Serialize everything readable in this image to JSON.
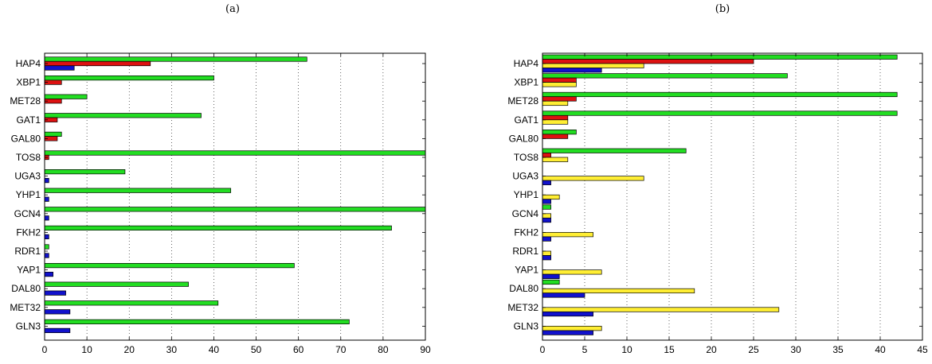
{
  "chart_data": [
    {
      "panel_label": "(a)",
      "type": "bar",
      "orientation": "horizontal",
      "categories": [
        "HAP4",
        "XBP1",
        "MET28",
        "GAT1",
        "GAL80",
        "TOS8",
        "UGA3",
        "YHP1",
        "GCN4",
        "FKH2",
        "RDR1",
        "YAP1",
        "DAL80",
        "MET32",
        "GLN3"
      ],
      "series": [
        {
          "color": "#22dd22",
          "values": [
            62,
            40,
            10,
            37,
            4,
            90,
            19,
            44,
            90,
            82,
            1,
            59,
            34,
            41,
            72
          ]
        },
        {
          "color": "#dd1111",
          "values": [
            25,
            4,
            4,
            3,
            3,
            1,
            0,
            0,
            0,
            0,
            0,
            0,
            0,
            0,
            0
          ]
        },
        {
          "color": "#1111cc",
          "values": [
            7,
            0,
            0,
            0,
            0,
            0,
            1,
            1,
            1,
            1,
            1,
            2,
            5,
            6,
            6
          ]
        }
      ],
      "xlim": [
        0,
        90
      ],
      "xticks": [
        0,
        10,
        20,
        30,
        40,
        50,
        60,
        70,
        80,
        90
      ],
      "grid": "x-dotted"
    },
    {
      "panel_label": "(b)",
      "type": "bar",
      "orientation": "horizontal",
      "categories": [
        "HAP4",
        "XBP1",
        "MET28",
        "GAT1",
        "GAL80",
        "TOS8",
        "UGA3",
        "YHP1",
        "GCN4",
        "FKH2",
        "RDR1",
        "YAP1",
        "DAL80",
        "MET32",
        "GLN3"
      ],
      "series": [
        {
          "color": "#22dd22",
          "values": [
            42,
            29,
            42,
            42,
            4,
            17,
            0,
            0,
            1,
            0,
            0,
            0,
            2,
            0,
            0
          ]
        },
        {
          "color": "#dd1111",
          "values": [
            25,
            4,
            4,
            3,
            3,
            1,
            0,
            0,
            0,
            0,
            0,
            0,
            0,
            0,
            0
          ]
        },
        {
          "color": "#ffee33",
          "values": [
            12,
            4,
            3,
            3,
            0,
            3,
            12,
            2,
            1,
            6,
            1,
            7,
            18,
            28,
            7
          ]
        },
        {
          "color": "#1111cc",
          "values": [
            7,
            0,
            0,
            0,
            0,
            0,
            1,
            1,
            1,
            1,
            1,
            2,
            5,
            6,
            6
          ]
        }
      ],
      "xlim": [
        0,
        45
      ],
      "xticks": [
        0,
        5,
        10,
        15,
        20,
        25,
        30,
        35,
        40,
        45
      ],
      "grid": "x-dotted"
    }
  ]
}
